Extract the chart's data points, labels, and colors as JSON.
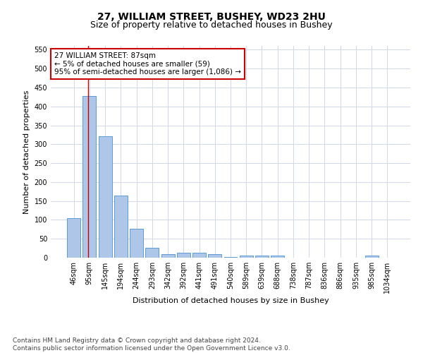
{
  "title": "27, WILLIAM STREET, BUSHEY, WD23 2HU",
  "subtitle": "Size of property relative to detached houses in Bushey",
  "xlabel": "Distribution of detached houses by size in Bushey",
  "ylabel": "Number of detached properties",
  "bar_labels": [
    "46sqm",
    "95sqm",
    "145sqm",
    "194sqm",
    "244sqm",
    "293sqm",
    "342sqm",
    "392sqm",
    "441sqm",
    "491sqm",
    "540sqm",
    "589sqm",
    "639sqm",
    "688sqm",
    "738sqm",
    "787sqm",
    "836sqm",
    "886sqm",
    "935sqm",
    "985sqm",
    "1034sqm"
  ],
  "bar_values": [
    105,
    428,
    322,
    165,
    76,
    27,
    10,
    14,
    14,
    10,
    1,
    6,
    5,
    5,
    0,
    0,
    0,
    0,
    0,
    5,
    0
  ],
  "bar_color": "#aec6e8",
  "bar_edge_color": "#5b9bd5",
  "annotation_line1": "27 WILLIAM STREET: 87sqm",
  "annotation_line2": "← 5% of detached houses are smaller (59)",
  "annotation_line3": "95% of semi-detached houses are larger (1,086) →",
  "annotation_box_color": "#ffffff",
  "annotation_box_edge_color": "#cc0000",
  "vline_color": "#cc0000",
  "ylim": [
    0,
    560
  ],
  "yticks": [
    0,
    50,
    100,
    150,
    200,
    250,
    300,
    350,
    400,
    450,
    500,
    550
  ],
  "footer_line1": "Contains HM Land Registry data © Crown copyright and database right 2024.",
  "footer_line2": "Contains public sector information licensed under the Open Government Licence v3.0.",
  "background_color": "#ffffff",
  "grid_color": "#d0d8e8",
  "title_fontsize": 10,
  "subtitle_fontsize": 9,
  "axis_label_fontsize": 8,
  "tick_fontsize": 7,
  "annotation_fontsize": 7.5,
  "footer_fontsize": 6.5
}
